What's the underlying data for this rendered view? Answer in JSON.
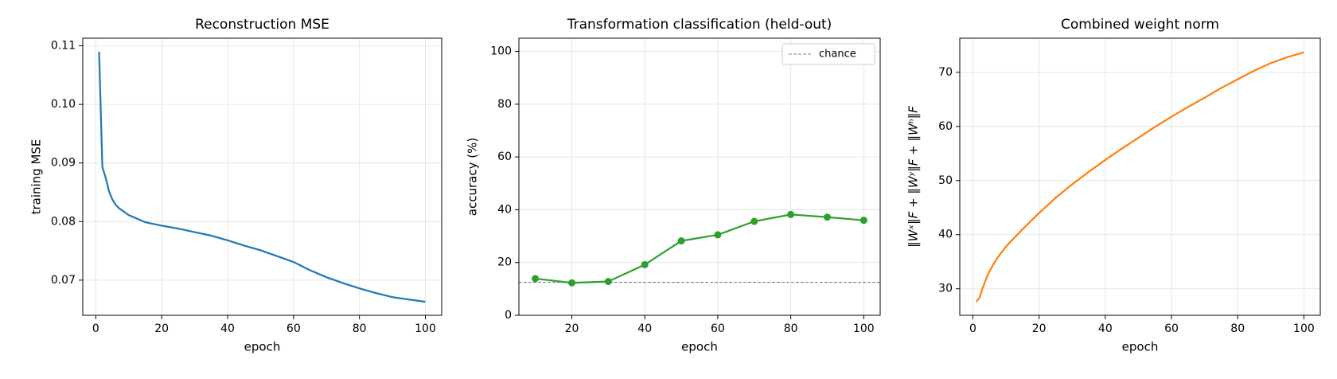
{
  "chart_data": [
    {
      "type": "line",
      "title": "Reconstruction MSE",
      "x_label": "epoch",
      "y_label": "training MSE",
      "x": [
        1,
        2,
        3,
        4,
        5,
        6,
        7,
        8,
        9,
        10,
        15,
        20,
        25,
        30,
        35,
        40,
        45,
        50,
        55,
        60,
        65,
        70,
        75,
        80,
        85,
        90,
        95,
        100
      ],
      "series": [
        {
          "color": "#1f77b4",
          "values": [
            0.109,
            0.0893,
            0.0875,
            0.0852,
            0.0838,
            0.0829,
            0.0823,
            0.0819,
            0.0815,
            0.0811,
            0.0799,
            0.0793,
            0.0788,
            0.0782,
            0.0776,
            0.0768,
            0.0759,
            0.0751,
            0.0741,
            0.0731,
            0.0717,
            0.0705,
            0.0695,
            0.0686,
            0.0678,
            0.0671,
            0.0667,
            0.0663
          ]
        }
      ],
      "xlim": [
        -3.95,
        104.95
      ],
      "ylim": [
        0.064,
        0.1113
      ],
      "xticks": [
        0,
        20,
        40,
        60,
        80,
        100
      ],
      "yticks": [
        0.07,
        0.08,
        0.09,
        {
          "value": 0.1,
          "label": "0.10"
        },
        0.11
      ],
      "grid": true
    },
    {
      "type": "line",
      "title": "Transformation classification (held-out)",
      "x_label": "epoch",
      "y_label": "accuracy (%)",
      "x": [
        10,
        20,
        30,
        40,
        50,
        60,
        70,
        80,
        90,
        100
      ],
      "series": [
        {
          "color": "#2ca02c",
          "markers": true,
          "values": [
            13.9,
            12.3,
            12.8,
            19.2,
            28.2,
            30.5,
            35.6,
            38.2,
            37.2,
            36.0
          ]
        }
      ],
      "hlines": [
        {
          "name": "chance",
          "value": 12.5,
          "color": "#808080",
          "style": "dashed"
        }
      ],
      "xlim": [
        5.5,
        104.5
      ],
      "ylim": [
        0,
        105
      ],
      "xticks": [
        20,
        40,
        60,
        80,
        100
      ],
      "yticks": [
        0,
        20,
        40,
        60,
        80,
        100
      ],
      "grid": true,
      "legend": "upper right"
    },
    {
      "type": "line",
      "title": "Combined weight norm",
      "x_label": "epoch",
      "y_label": "‖Wˣ‖F + ‖Wʸ‖F + ‖Wʰ‖F",
      "x": [
        1,
        2,
        3,
        4,
        5,
        6,
        7,
        8,
        9,
        10,
        15,
        20,
        25,
        30,
        35,
        40,
        45,
        50,
        55,
        60,
        65,
        70,
        75,
        80,
        85,
        90,
        95,
        100
      ],
      "series": [
        {
          "color": "#ff7f0e",
          "values": [
            27.6,
            28.3,
            30.2,
            31.8,
            33.2,
            34.3,
            35.3,
            36.2,
            37.0,
            37.8,
            41.0,
            44.0,
            46.8,
            49.3,
            51.6,
            53.8,
            55.9,
            57.9,
            59.9,
            61.8,
            63.6,
            65.3,
            67.1,
            68.7,
            70.3,
            71.7,
            72.8,
            73.7
          ]
        }
      ],
      "xlim": [
        -3.95,
        104.95
      ],
      "ylim": [
        25.1,
        76.3
      ],
      "xticks": [
        0,
        20,
        40,
        60,
        80,
        100
      ],
      "yticks": [
        30,
        40,
        50,
        60,
        70
      ],
      "grid": true
    }
  ]
}
